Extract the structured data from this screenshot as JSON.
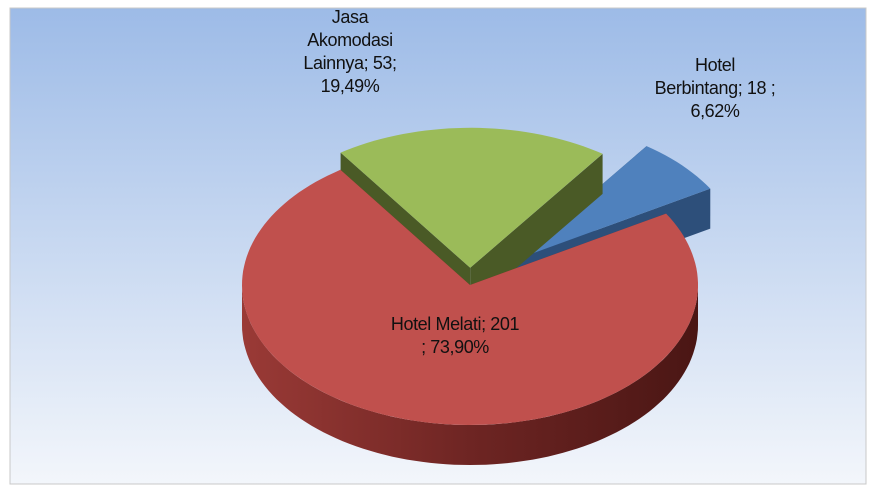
{
  "chart_data": {
    "type": "pie3d",
    "values": [
      18,
      201,
      53
    ],
    "value_labels": [
      "Hotel Berbintang; 18 ; 6,62%",
      "Hotel Melati; 201 ; 73,90%",
      "Jasa Akomodasi Lainnya; 53; 19,49%"
    ],
    "colors": [
      "#4f81bd",
      "#c0504d",
      "#9bbb59"
    ],
    "side_colors": [
      "#2d4f7a",
      "#7a2a28",
      "#4a5a26"
    ]
  }
}
